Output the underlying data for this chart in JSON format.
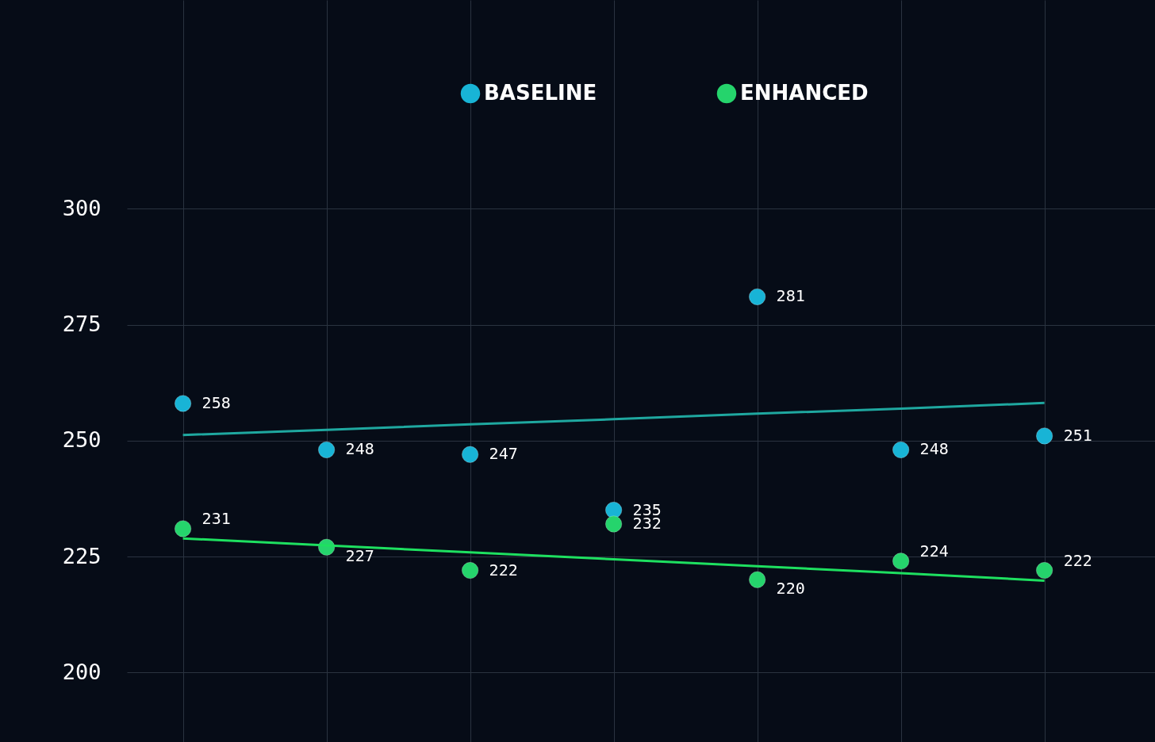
{
  "chart_data": {
    "type": "scatter",
    "categories": [
      null,
      null,
      null,
      null,
      null,
      null,
      null
    ],
    "ylim": [
      185,
      345
    ],
    "yticks": [
      200,
      225,
      250,
      275,
      300
    ],
    "grid": true,
    "legend": "top",
    "marker": "circle",
    "series": [
      {
        "name": "BASELINE",
        "color": "#18b4d6",
        "values": [
          258,
          248,
          247,
          235,
          281,
          248,
          251
        ],
        "value_labels": [
          "258",
          "248",
          "247",
          "235",
          "281",
          "248",
          "251"
        ]
      },
      {
        "name": "ENHANCED",
        "color": "#25d46c",
        "values": [
          231,
          227,
          222,
          232,
          220,
          224,
          222
        ],
        "value_labels": [
          "231",
          "227",
          "222",
          "232",
          "220",
          "224",
          "222"
        ]
      },
      {
        "type": "line",
        "marker": "none",
        "color": "#1fa8a0",
        "values": [
          251.2,
          252.3,
          253.5,
          254.6,
          255.8,
          256.9,
          258.1
        ]
      },
      {
        "type": "line",
        "marker": "none",
        "color": "#1ee060",
        "values": [
          228.9,
          227.4,
          225.9,
          224.4,
          222.9,
          221.4,
          219.8
        ]
      }
    ]
  }
}
